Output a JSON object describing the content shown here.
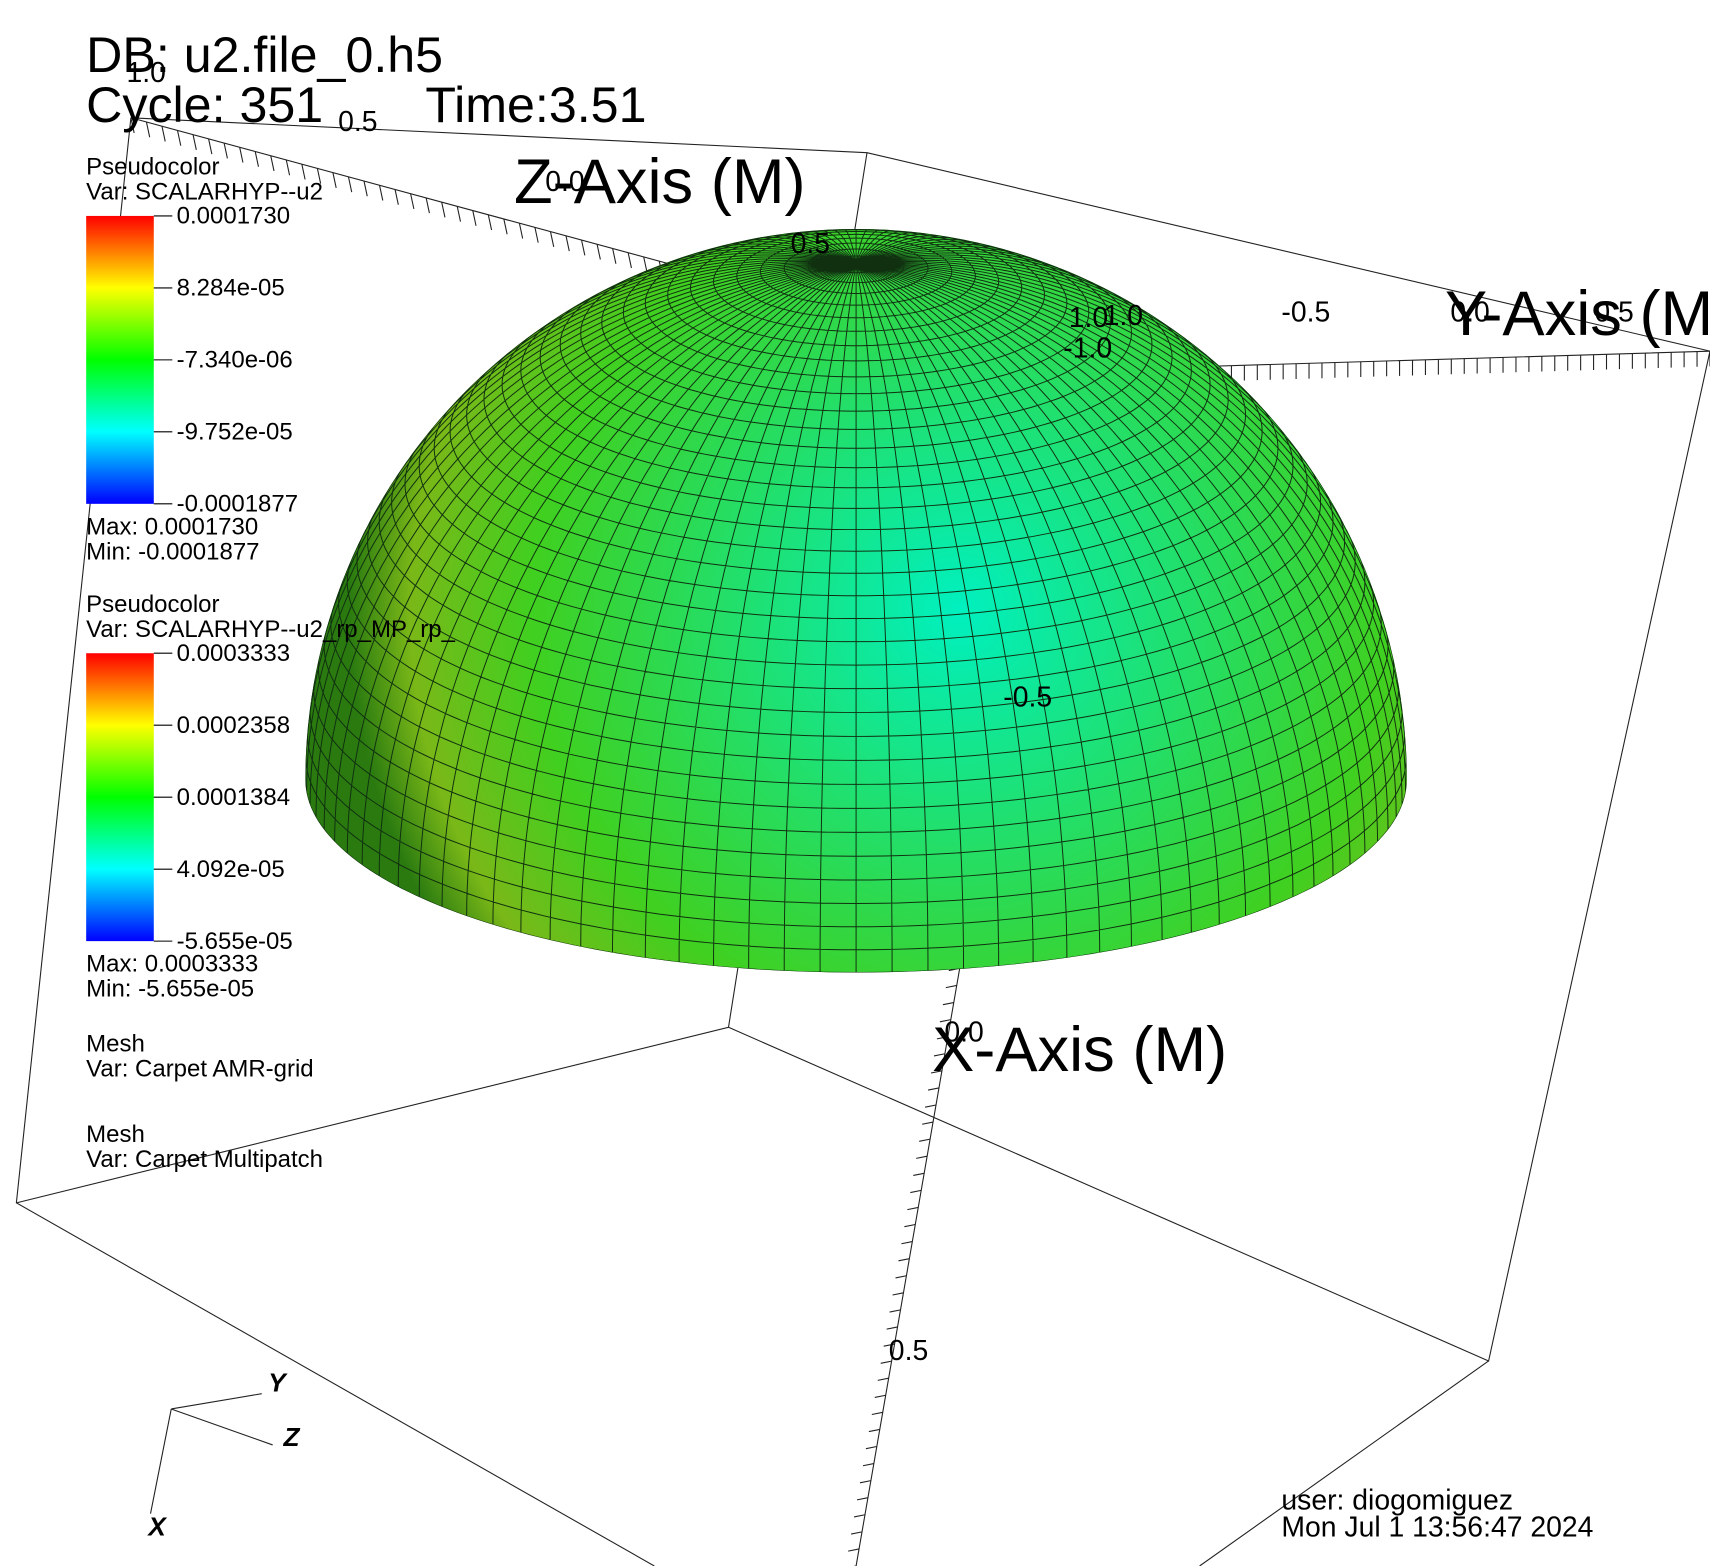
{
  "header": {
    "db": "DB: u2.file_0.h5",
    "cycle": "Cycle: 351",
    "time": "Time:3.51"
  },
  "legends": [
    {
      "plot": "Pseudocolor",
      "var": "Var: SCALARHYP--u2",
      "ticks": [
        "0.0001730",
        "8.284e-05",
        "-7.340e-06",
        "-9.752e-05",
        "-0.0001877"
      ],
      "max": "Max:  0.0001730",
      "min": "Min: -0.0001877"
    },
    {
      "plot": "Pseudocolor",
      "var": "Var: SCALARHYP--u2_rp_MP_rp_",
      "ticks": [
        "0.0003333",
        "0.0002358",
        "0.0001384",
        "4.092e-05",
        "-5.655e-05"
      ],
      "max": "Max:  0.0003333",
      "min": "Min: -5.655e-05"
    },
    {
      "plot": "Mesh",
      "var": "Var: Carpet AMR-grid"
    },
    {
      "plot": "Mesh",
      "var": "Var: Carpet Multipatch"
    }
  ],
  "axes": {
    "z_title": "Z-Axis (M)",
    "y_title": "Y-Axis (M",
    "x_title": "X-Axis (M)",
    "tick_labels": [
      "1.0",
      "0.5",
      "0.0",
      "0.5",
      "1.0",
      "1.0",
      "-1.0",
      "-0.5",
      "0.0",
      "0.5",
      "-0.5",
      "0.0",
      "0.5"
    ]
  },
  "triad": {
    "x": "X",
    "y": "Y",
    "z": "Z"
  },
  "footer": {
    "user": "user: diogomiguez",
    "date": "Mon Jul  1 13:56:47 2024"
  }
}
